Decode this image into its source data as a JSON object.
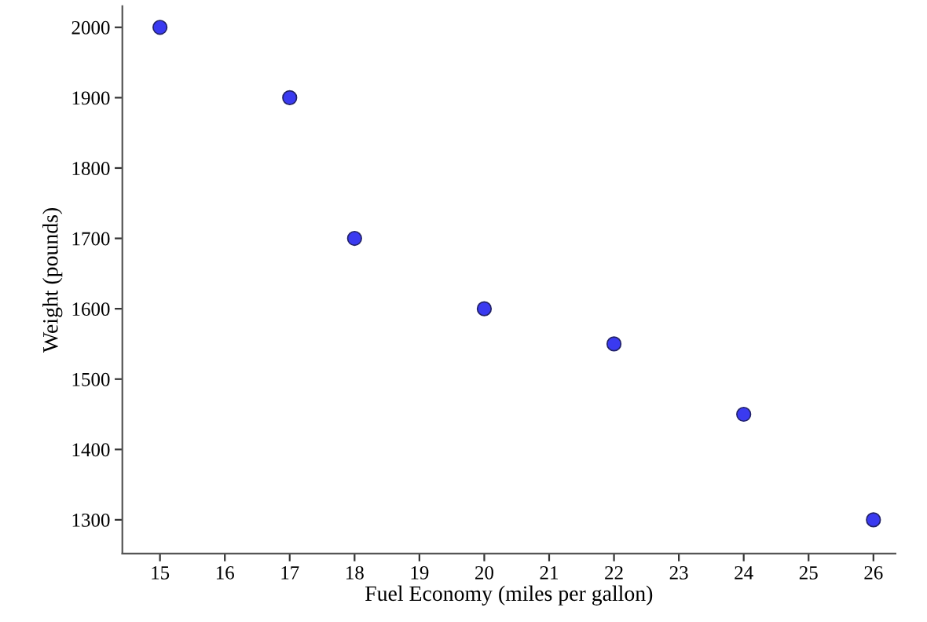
{
  "chart_data": {
    "type": "scatter",
    "xlabel": "Fuel Economy (miles per gallon)",
    "ylabel": "Weight (pounds)",
    "x": [
      15,
      17,
      18,
      20,
      22,
      24,
      26
    ],
    "series": [
      {
        "color": "#3a3af0",
        "values": [
          2000,
          1900,
          1700,
          1600,
          1550,
          1450,
          1300
        ]
      }
    ],
    "xlim": [
      14.42,
      26.34
    ],
    "ylim": [
      1252,
      2030
    ],
    "xticks": [
      15,
      16,
      17,
      18,
      19,
      20,
      21,
      22,
      23,
      24,
      25,
      26
    ],
    "yticks": [
      1300,
      1400,
      1500,
      1600,
      1700,
      1800,
      1900,
      2000
    ],
    "marker": "circle",
    "grid": false,
    "legend": false
  }
}
